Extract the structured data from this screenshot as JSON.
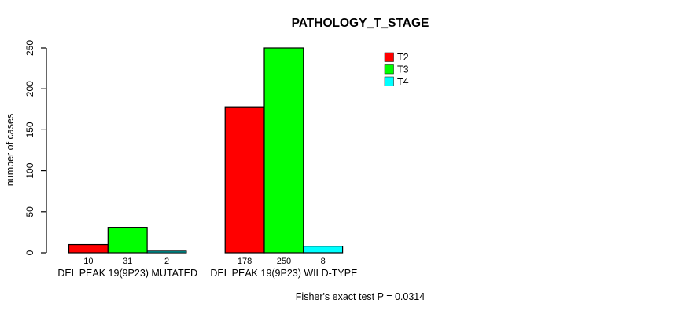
{
  "chart_data": {
    "type": "bar",
    "title": "PATHOLOGY_T_STAGE",
    "xlabel": "",
    "ylabel": "number of cases",
    "ylim": [
      0,
      250
    ],
    "yticks": [
      0,
      50,
      100,
      150,
      200,
      250
    ],
    "grid": false,
    "legend_position": "top-right",
    "categories": [
      "DEL PEAK 19(9P23) MUTATED",
      "DEL PEAK 19(9P23) WILD-TYPE"
    ],
    "groups": [
      {
        "label": "DEL PEAK 19(9P23) MUTATED",
        "values": [
          10,
          31,
          2
        ]
      },
      {
        "label": "DEL PEAK 19(9P23) WILD-TYPE",
        "values": [
          178,
          250,
          8
        ]
      }
    ],
    "series": [
      {
        "name": "T2",
        "color": "#ff0000"
      },
      {
        "name": "T3",
        "color": "#00ff00"
      },
      {
        "name": "T4",
        "color": "#00ffff"
      }
    ],
    "bar_value_labels": [
      10,
      31,
      2,
      178,
      250,
      8
    ],
    "footnote": "Fisher's exact test P = 0.0314",
    "colors": {
      "bar_border": "#000000",
      "axis": "#000000",
      "background": "#ffffff"
    }
  }
}
